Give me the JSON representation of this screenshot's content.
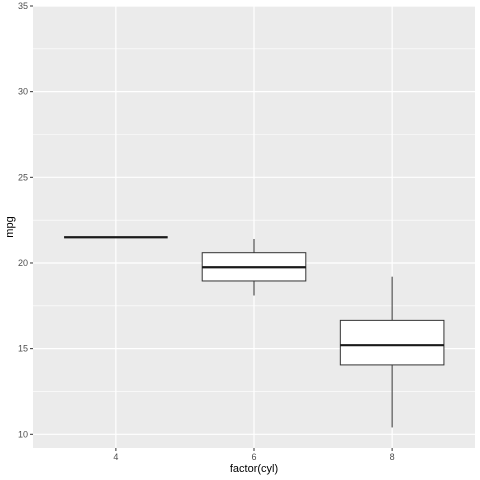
{
  "chart_data": {
    "type": "boxplot",
    "title": "",
    "xlabel": "factor(cyl)",
    "ylabel": "mpg",
    "categories": [
      "4",
      "6",
      "8"
    ],
    "ylim": [
      9.2,
      35
    ],
    "y_ticks": [
      10,
      15,
      20,
      25,
      30,
      35
    ],
    "y_tick_labels": [
      "10",
      "15",
      "20",
      "25",
      "30",
      "35"
    ],
    "grid": true,
    "legend": "none",
    "boxes": [
      {
        "category": "4",
        "whisker_low": 21.5,
        "q1": 21.5,
        "median": 21.5,
        "q3": 21.5,
        "whisker_high": 21.5
      },
      {
        "category": "6",
        "whisker_low": 18.1,
        "q1": 18.95,
        "median": 19.75,
        "q3": 20.6,
        "whisker_high": 21.4
      },
      {
        "category": "8",
        "whisker_low": 10.4,
        "q1": 14.05,
        "median": 15.2,
        "q3": 16.65,
        "whisker_high": 19.2
      }
    ],
    "colors": {
      "panel": "#ebebeb",
      "grid_major": "#ffffff",
      "box_fill": "#ffffff",
      "box_stroke": "#333333",
      "median": "#1a1a1a"
    }
  }
}
